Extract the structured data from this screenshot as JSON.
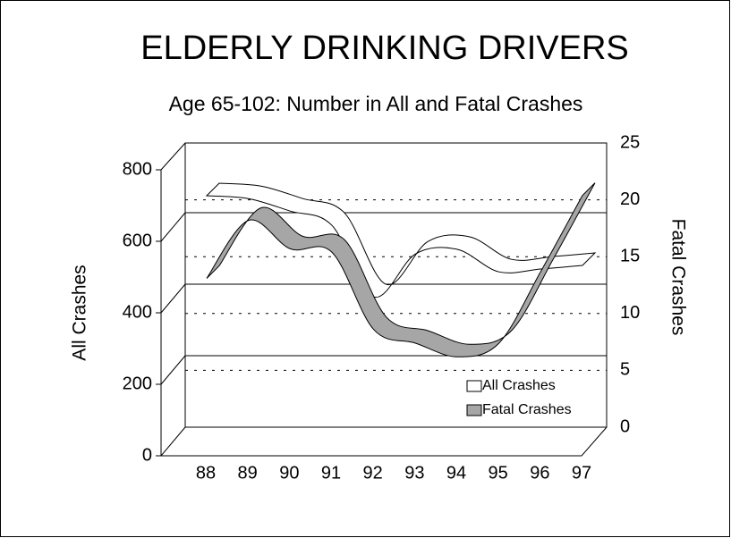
{
  "chart_data": {
    "type": "ribbon-line",
    "title": "ELDERLY DRINKING DRIVERS",
    "subtitle": "Age 65-102: Number in All and Fatal Crashes",
    "y_label": "All Crashes",
    "y2_label": "Fatal Crashes",
    "categories": [
      "88",
      "89",
      "90",
      "91",
      "92",
      "93",
      "94",
      "95",
      "96",
      "97"
    ],
    "series": [
      {
        "name": "All Crashes",
        "color": "#ffffff",
        "axis": "y",
        "values": [
          705,
          697,
          662,
          622,
          422,
          542,
          555,
          492,
          500,
          510
        ]
      },
      {
        "name": "Fatal Crashes",
        "color": "#a6a6a6",
        "axis": "y2",
        "values": [
          14.9,
          20.0,
          17.5,
          17.2,
          10.4,
          9.2,
          8.0,
          9.2,
          15.5,
          22.2
        ]
      }
    ],
    "ylim": [
      0,
      800
    ],
    "yticks": [
      0,
      200,
      400,
      600,
      800
    ],
    "y2lim": [
      0,
      25
    ],
    "y2ticks": [
      0,
      5,
      10,
      15,
      20,
      25
    ],
    "legend": "lower right"
  }
}
